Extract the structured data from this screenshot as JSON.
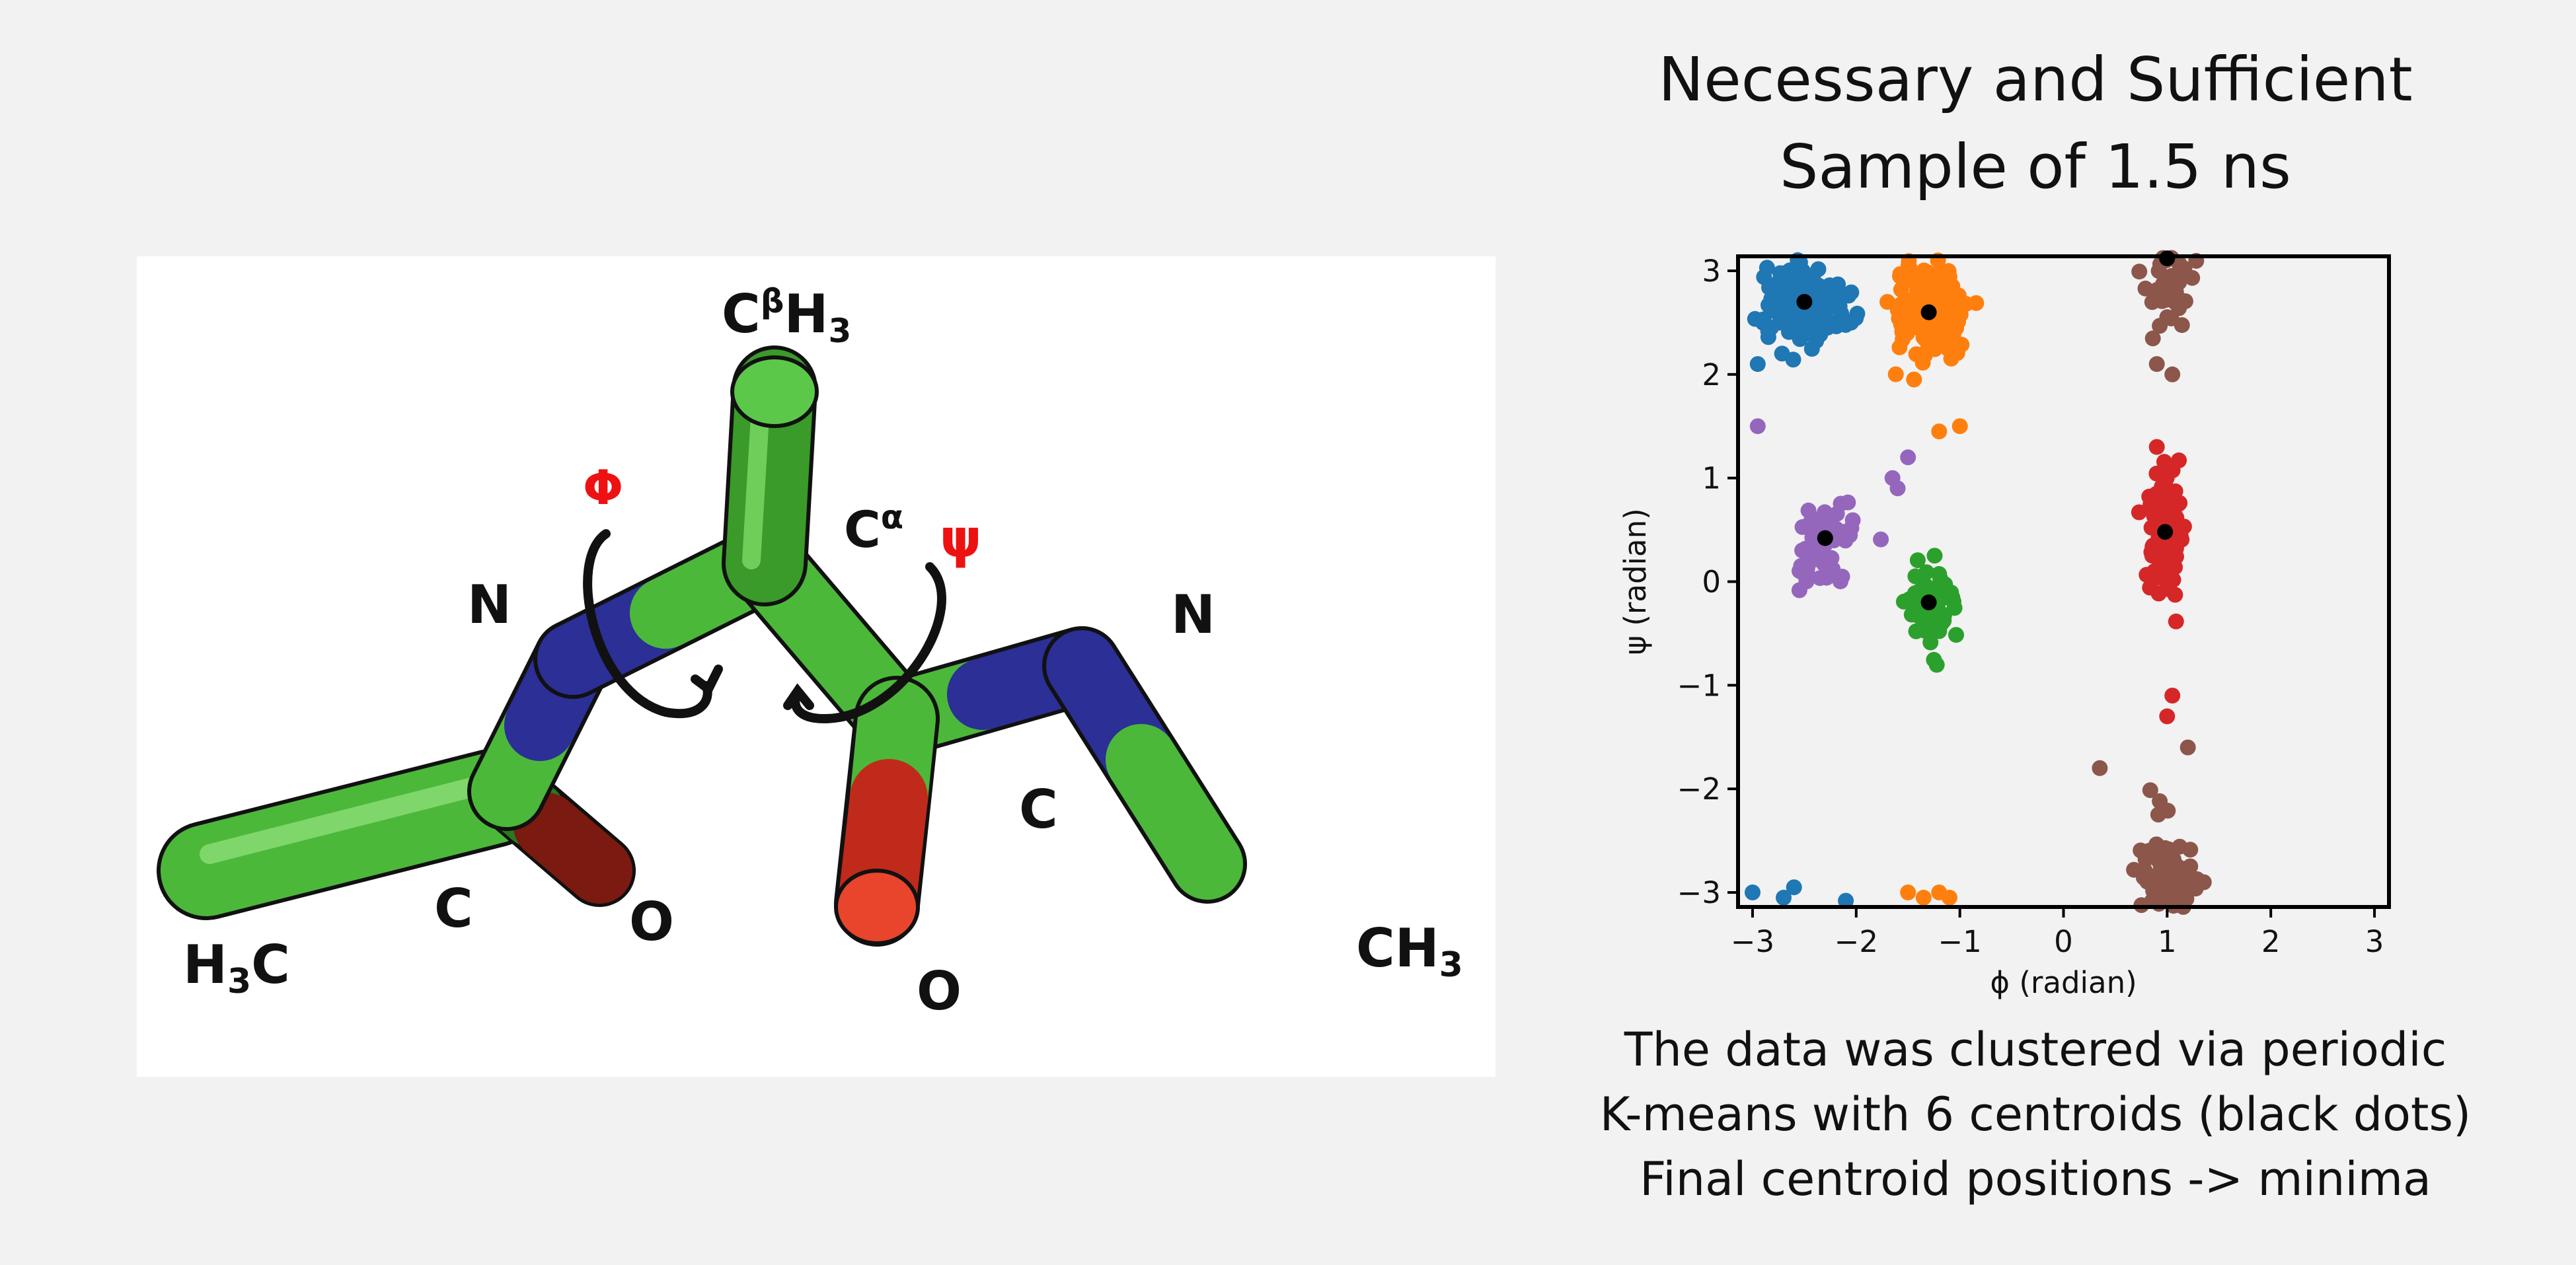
{
  "slide": {
    "title_lines": [
      "Necessary and Sufficient",
      "Sample of 1.5 ns"
    ],
    "caption_lines": [
      "The data was clustered via periodic",
      "K-means with 6 centroids (black dots)",
      "Final centroid positions -> minima"
    ]
  },
  "molecule": {
    "labels": {
      "cbh3": {
        "main": "C",
        "sup": "β",
        "rest": "H",
        "sub": "3"
      },
      "phi": "Φ",
      "psi": "ψ",
      "calpha": {
        "main": "C",
        "sup": "α"
      },
      "n_left": "N",
      "n_right": "N",
      "c_left": "C",
      "o_left": "O",
      "h3c": {
        "a": "H",
        "sub": "3",
        "b": "C"
      },
      "c_right": "C",
      "o_right": "O",
      "ch3": {
        "a": "CH",
        "sub": "3"
      }
    },
    "colors": {
      "carbon": "#4cb83a",
      "nitrogen": "#2b2f96",
      "oxygen": "#c02a1a",
      "arrow": "#111111",
      "angle_label": "#ee1111"
    }
  },
  "chart_data": {
    "type": "scatter",
    "xlabel": "ϕ (radian)",
    "ylabel": "ψ (radian)",
    "xlim": [
      -3.14,
      3.14
    ],
    "ylim": [
      -3.14,
      3.14
    ],
    "xticks": [
      -3,
      -2,
      -1,
      0,
      1,
      2,
      3
    ],
    "yticks": [
      -3,
      -2,
      -1,
      0,
      1,
      2,
      3
    ],
    "tick_labels": [
      "−3",
      "−2",
      "−1",
      "0",
      "1",
      "2",
      "3"
    ],
    "grid": false,
    "centroid_color": "#000000",
    "clusters": [
      {
        "color": "#1f77b4",
        "center": [
          -2.5,
          2.7
        ],
        "spread": [
          0.3,
          0.3
        ],
        "n": 180,
        "extra_points": [
          [
            -3.0,
            -3.0
          ],
          [
            -2.6,
            -2.95
          ],
          [
            -2.7,
            -3.05
          ],
          [
            -2.1,
            -3.08
          ],
          [
            -2.95,
            2.1
          ],
          [
            -2.05,
            2.5
          ]
        ]
      },
      {
        "color": "#ff7f0e",
        "center": [
          -1.3,
          2.6
        ],
        "spread": [
          0.28,
          0.35
        ],
        "n": 180,
        "extra_points": [
          [
            -1.35,
            -3.05
          ],
          [
            -1.2,
            -3.0
          ],
          [
            -1.1,
            -3.05
          ],
          [
            -1.5,
            -3.0
          ],
          [
            -1.0,
            1.5
          ],
          [
            -1.2,
            1.45
          ]
        ]
      },
      {
        "color": "#2ca02c",
        "center": [
          -1.3,
          -0.2
        ],
        "spread": [
          0.18,
          0.3
        ],
        "n": 70,
        "extra_points": []
      },
      {
        "color": "#d62728",
        "center": [
          0.98,
          0.48
        ],
        "spread": [
          0.12,
          0.45
        ],
        "n": 160,
        "extra_points": [
          [
            0.9,
            1.3
          ],
          [
            1.0,
            -1.3
          ],
          [
            1.05,
            -1.1
          ]
        ]
      },
      {
        "color": "#9467bd",
        "center": [
          -2.3,
          0.42
        ],
        "spread": [
          0.28,
          0.42
        ],
        "n": 55,
        "extra_points": [
          [
            -2.95,
            1.5
          ],
          [
            -1.5,
            1.2
          ],
          [
            -1.65,
            1.0
          ],
          [
            -1.6,
            0.9
          ]
        ]
      },
      {
        "color": "#8c564b",
        "center": [
          1.0,
          3.1
        ],
        "spread": [
          0.2,
          0.55
        ],
        "n": 90,
        "wrap_points": true,
        "extra_points": [
          [
            0.35,
            -1.8
          ],
          [
            1.2,
            -1.6
          ],
          [
            1.05,
            2.0
          ],
          [
            0.9,
            2.1
          ]
        ]
      }
    ],
    "centroids": [
      [
        -2.5,
        2.7
      ],
      [
        -1.3,
        2.6
      ],
      [
        -1.3,
        -0.2
      ],
      [
        0.98,
        0.48
      ],
      [
        -2.3,
        0.42
      ],
      [
        1.0,
        3.12
      ]
    ]
  }
}
